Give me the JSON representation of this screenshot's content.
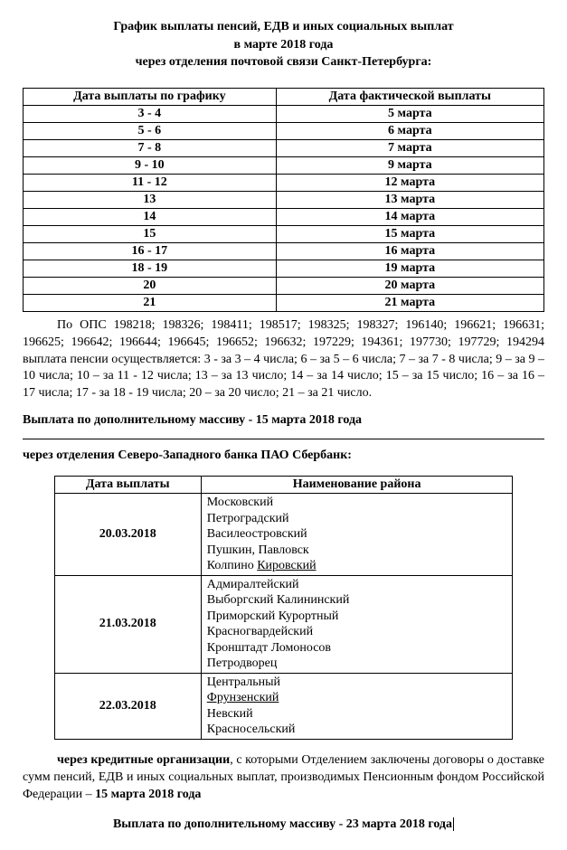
{
  "title_line1": "График выплаты пенсий, ЕДВ и иных социальных выплат",
  "title_line2": "в   марте  2018 года",
  "title_line3": "через отделения почтовой связи Санкт-Петербурга:",
  "table1": {
    "col1": "Дата выплаты по графику",
    "col2": "Дата фактической выплаты",
    "rows": [
      {
        "g": "3 - 4",
        "f": "5 марта"
      },
      {
        "g": "5 - 6",
        "f": "6 марта"
      },
      {
        "g": "7 - 8",
        "f": "7 марта"
      },
      {
        "g": "9 - 10",
        "f": "9 марта"
      },
      {
        "g": "11 - 12",
        "f": "12 марта"
      },
      {
        "g": "13",
        "f": "13 марта"
      },
      {
        "g": "14",
        "f": "14 марта"
      },
      {
        "g": "15",
        "f": "15 марта"
      },
      {
        "g": "16 - 17",
        "f": "16 марта"
      },
      {
        "g": "18 - 19",
        "f": "19 марта"
      },
      {
        "g": "20",
        "f": "20 марта"
      },
      {
        "g": "21",
        "f": "21 марта"
      }
    ]
  },
  "ops_text": "По ОПС 198218; 198326; 198411; 198517; 198325; 198327; 196140; 196621; 196631; 196625; 196642; 196644; 196645; 196652; 196632; 197229; 194361; 197730; 197729; 194294 выплата пенсии осуществляется: 3 - за 3 – 4 числа; 6 – за 5 – 6 числа; 7 – за 7 - 8 числа; 9 – за 9 – 10 числа; 10 – за 11 - 12 числа; 13 – за 13 число; 14 – за 14 число; 15 – за 15 число; 16 – за 16 – 17 числа; 17 - за 18 - 19 числа; 20 – за 20 число; 21 – за 21 число.",
  "extra_array_line": "Выплата по дополнительному массиву -   15    марта 2018 года",
  "sberbank_head": "через отделения  Северо-Западного банка  ПАО Сбербанк:",
  "table2": {
    "col1": "Дата выплаты",
    "col2": "Наименование района",
    "rows": [
      {
        "date": "20.03.2018",
        "lines": [
          "Московский",
          "Петроградский",
          "Василеостровский",
          "Пушкин, Павловск"
        ],
        "lastLine": {
          "plain": "Колпино       ",
          "underlined": "Кировский"
        }
      },
      {
        "date": "21.03.2018",
        "lines": [
          "Адмиралтейский",
          "Выборгский       Калининский",
          "Приморский       Курортный",
          "Красногвардейский",
          "Кронштадт       Ломоносов",
          "Петродворец"
        ]
      },
      {
        "date": "22.03.2018",
        "lines": [
          "Центральный"
        ],
        "underlinedLines": [
          "Фрунзенский"
        ],
        "trailingLines": [
          "Невский",
          "Красносельский"
        ]
      }
    ]
  },
  "credit_prefix": "через   кредитные  организации",
  "credit_rest": ", с  которыми  Отделением  заключены  договоры  о доставке сумм пенсий, ЕДВ  и иных социальных выплат, производимых Пенсионным фондом Российской Федерации –   ",
  "credit_date": "15  марта 2018 года",
  "final_line": "Выплата по дополнительному массиву - 23    марта 2018 года"
}
